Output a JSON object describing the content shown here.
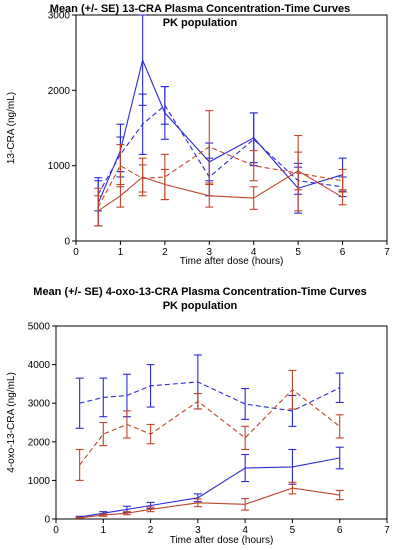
{
  "chart_data": [
    {
      "type": "line",
      "title": "Mean (+/- SE) 13-CRA Plasma Concentration-Time Curves",
      "subtitle": "PK population",
      "xlabel": "Time after dose (hours)",
      "ylabel": "13-CRA (ng/mL)",
      "xlim": [
        0,
        7
      ],
      "ylim": [
        0,
        3000
      ],
      "xticks": [
        0,
        1,
        2,
        3,
        4,
        5,
        6,
        7
      ],
      "yticks": [
        0,
        1000,
        2000,
        3000
      ],
      "grid": false,
      "series": [
        {
          "color": "#2b2bd6",
          "line_style": "solid",
          "x": [
            0.5,
            1,
            1.5,
            2,
            3,
            4,
            5,
            6
          ],
          "y": [
            500,
            1200,
            2400,
            1700,
            1050,
            1370,
            700,
            880
          ],
          "err": [
            300,
            350,
            600,
            350,
            250,
            330,
            330,
            220
          ]
        },
        {
          "color": "#2b2bd6",
          "line_style": "dashed",
          "x": [
            0.5,
            1,
            1.5,
            2,
            3,
            4,
            5,
            6
          ],
          "y": [
            620,
            1150,
            1550,
            1800,
            850,
            1350,
            800,
            720
          ],
          "err": [
            220,
            230,
            400,
            250,
            250,
            350,
            180,
            130
          ]
        },
        {
          "color": "#c0452a",
          "line_style": "solid",
          "x": [
            0.5,
            1,
            1.5,
            2,
            3,
            4,
            5,
            6
          ],
          "y": [
            400,
            600,
            850,
            750,
            600,
            570,
            930,
            580
          ],
          "err": [
            200,
            150,
            250,
            200,
            150,
            150,
            250,
            100
          ]
        },
        {
          "color": "#c0452a",
          "line_style": "dashed",
          "x": [
            0.5,
            1,
            1.5,
            2,
            3,
            4,
            5,
            6
          ],
          "y": [
            450,
            1000,
            830,
            850,
            1250,
            1000,
            900,
            800
          ],
          "err": [
            250,
            280,
            180,
            300,
            480,
            200,
            500,
            150
          ]
        }
      ]
    },
    {
      "type": "line",
      "title": "Mean (+/- SE) 4-oxo-13-CRA Plasma Concentration-Time Curves",
      "subtitle": "PK population",
      "xlabel": "Time after dose (hours)",
      "ylabel": "4-oxo-13-CRA (ng/mL)",
      "xlim": [
        0,
        7
      ],
      "ylim": [
        0,
        5000
      ],
      "xticks": [
        0,
        1,
        2,
        3,
        4,
        5,
        6,
        7
      ],
      "yticks": [
        0,
        1000,
        2000,
        3000,
        4000,
        5000
      ],
      "grid": false,
      "series": [
        {
          "color": "#2b2bd6",
          "line_style": "solid",
          "x": [
            0.5,
            1,
            1.5,
            2,
            3,
            4,
            5,
            6
          ],
          "y": [
            50,
            150,
            250,
            350,
            550,
            1320,
            1350,
            1580
          ],
          "err": [
            20,
            40,
            80,
            80,
            100,
            350,
            450,
            280
          ]
        },
        {
          "color": "#2b2bd6",
          "line_style": "dashed",
          "x": [
            0.5,
            1,
            1.5,
            2,
            3,
            4,
            5,
            6
          ],
          "y": [
            3000,
            3150,
            3200,
            3450,
            3550,
            2980,
            2800,
            3400
          ],
          "err": [
            650,
            500,
            550,
            550,
            700,
            400,
            400,
            380
          ]
        },
        {
          "color": "#c0452a",
          "line_style": "solid",
          "x": [
            0.5,
            1,
            1.5,
            2,
            3,
            4,
            5,
            6
          ],
          "y": [
            30,
            100,
            150,
            250,
            420,
            380,
            800,
            620
          ],
          "err": [
            10,
            30,
            40,
            60,
            100,
            150,
            150,
            120
          ]
        },
        {
          "color": "#c0452a",
          "line_style": "dashed",
          "x": [
            0.5,
            1,
            1.5,
            2,
            3,
            4,
            5,
            6
          ],
          "y": [
            1400,
            2200,
            2450,
            2200,
            3050,
            2100,
            3350,
            2400
          ],
          "err": [
            400,
            300,
            350,
            250,
            200,
            300,
            500,
            300
          ]
        }
      ]
    }
  ]
}
